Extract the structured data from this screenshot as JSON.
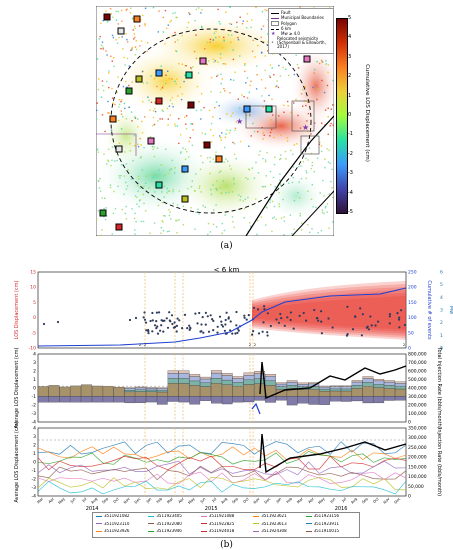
{
  "figure": {
    "caption_a": "(a)",
    "caption_b": "(b)"
  },
  "map": {
    "legend": [
      {
        "label": "Fault",
        "color": "#000000",
        "kind": "line"
      },
      {
        "label": "Municipal Boundaries",
        "color": "#7b2d8b",
        "kind": "line"
      },
      {
        "label": "Polygon",
        "color": "#888888",
        "kind": "box"
      },
      {
        "label": "6 km",
        "color": "#000000",
        "kind": "dash"
      },
      {
        "label": "Mw ≥ 4.0",
        "color": "#7a3aa8",
        "kind": "star"
      },
      {
        "label": "Relocated seismicity (Schoenball & Ellsworth, 2017)",
        "color": "#777777",
        "kind": "dot"
      }
    ],
    "colorbar": {
      "label": "Cumulative LOS Displacement (cm)",
      "ticks": [
        "5",
        "4",
        "3",
        "2",
        "1",
        "0",
        "-1",
        "-2",
        "-3",
        "-4",
        "-5"
      ]
    }
  },
  "panel_b_title": "< 6 km",
  "chart_data": [
    {
      "type": "scatter",
      "ylabel": "LOS Displacement (cm)",
      "ylabel_right": "Cumulative # of events",
      "ylabel_right2": "Mw",
      "ylim": [
        -10,
        15
      ],
      "yticks": [
        "15",
        "10",
        "5",
        "0",
        "-5",
        "-10"
      ],
      "yticks_right": [
        "250",
        "200",
        "150",
        "100",
        "50",
        "0"
      ],
      "yticks_right2": [
        "6",
        "5",
        "4",
        "3",
        "2",
        "1",
        "0"
      ],
      "events_marker_labels": [
        "2",
        "2",
        "2",
        "2",
        "2"
      ]
    },
    {
      "type": "bar",
      "ylabel": "Average LOS Displacement (cm)",
      "ylabel_right": "Total Injection Rate (bbls/month)",
      "yticks": [
        "4",
        "3",
        "2",
        "1",
        "0",
        "-1",
        "-2",
        "-3",
        "-4"
      ],
      "yticks_right": [
        "800,000",
        "700,000",
        "600,000",
        "500,000",
        "400,000",
        "300,000",
        "200,000",
        "100,000",
        "0"
      ]
    },
    {
      "type": "line",
      "ylabel": "Average LOS Displacement (cm)",
      "ylabel_right": "Injection Rate (bbls/month)",
      "yticks": [
        "4",
        "3",
        "2",
        "1",
        "0",
        "-1",
        "-2",
        "-3",
        "-4"
      ],
      "yticks_right": [
        "350,000",
        "300,000",
        "250,000",
        "200,000",
        "150,000",
        "100,000",
        "50,000",
        "0"
      ],
      "months": [
        "Mar",
        "Apr",
        "May",
        "Jun",
        "Jul",
        "Aug",
        "Sep",
        "Oct",
        "Nov",
        "Dec",
        "Jan",
        "Feb",
        "Mar",
        "Apr",
        "May",
        "Jun",
        "Jul",
        "Aug",
        "Sep",
        "Oct",
        "Nov",
        "Dec",
        "Jan",
        "Feb",
        "Mar",
        "Apr",
        "May",
        "Jun",
        "Jul",
        "Aug",
        "Sep",
        "Oct",
        "Nov",
        "Dec"
      ],
      "years": [
        "2014",
        "2015",
        "2016"
      ]
    }
  ],
  "well_legend": [
    {
      "id": "3511921082",
      "color": "#1f77b4"
    },
    {
      "id": "3511923405",
      "color": "#17becf"
    },
    {
      "id": "3511921088",
      "color": "#e377c2"
    },
    {
      "id": "3511923621",
      "color": "#ff7f0e"
    },
    {
      "id": "3511923156",
      "color": "#2ca02c"
    },
    {
      "id": "3511923110",
      "color": "#9467bd"
    },
    {
      "id": "3511922080",
      "color": "#8c564b"
    },
    {
      "id": "3511922825",
      "color": "#d62728"
    },
    {
      "id": "3511923613",
      "color": "#bcbd22"
    },
    {
      "id": "3511923911",
      "color": "#1f77b4"
    },
    {
      "id": "3511923926",
      "color": "#ff7f0e"
    },
    {
      "id": "3511923946",
      "color": "#2ca02c"
    },
    {
      "id": "3511924018",
      "color": "#d62728"
    },
    {
      "id": "3511924308",
      "color": "#9467bd"
    },
    {
      "id": "3511910015",
      "color": "#8c564b"
    }
  ]
}
